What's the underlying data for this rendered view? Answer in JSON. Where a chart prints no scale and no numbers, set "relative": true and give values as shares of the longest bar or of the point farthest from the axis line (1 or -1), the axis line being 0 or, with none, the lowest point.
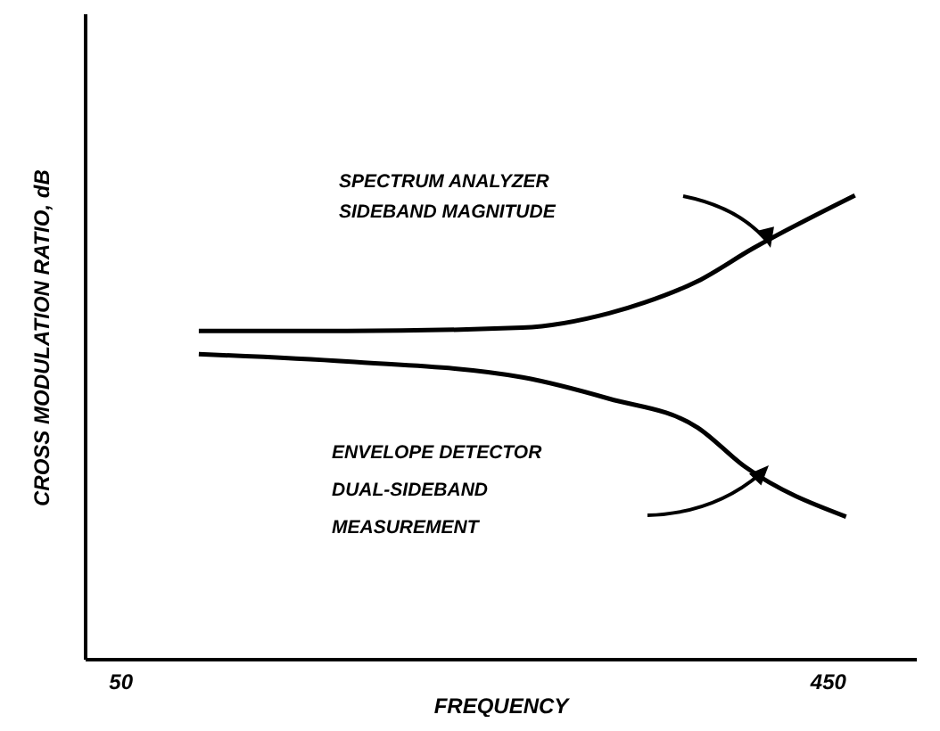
{
  "chart_data": {
    "type": "line",
    "relative": true,
    "xlabel": "FREQUENCY",
    "ylabel": "CROSS MODULATION RATIO, dB",
    "xlim": [
      30,
      500
    ],
    "xticks": [
      50,
      450
    ],
    "grid": false,
    "legend": false,
    "marker": "none",
    "line_style": "solid",
    "series": [
      {
        "color": "#000000",
        "x": [
          94,
          178,
          277,
          326,
          346,
          376,
          407,
          465
        ],
        "values": [
          0.708,
          0.708,
          0.715,
          0.746,
          0.769,
          0.815,
          0.885,
          1.0
        ]
      },
      {
        "color": "#000000",
        "x": [
          94,
          178,
          277,
          326,
          376,
          403,
          460
        ],
        "values": [
          0.658,
          0.642,
          0.608,
          0.562,
          0.5,
          0.415,
          0.308
        ]
      }
    ],
    "annotations": [
      "SPECTRUM ANALYZER\nSIDEBAND MAGNITUDE",
      "ENVELOPE DETECTOR\nDUAL-SIDEBAND\nMEASUREMENT"
    ]
  }
}
